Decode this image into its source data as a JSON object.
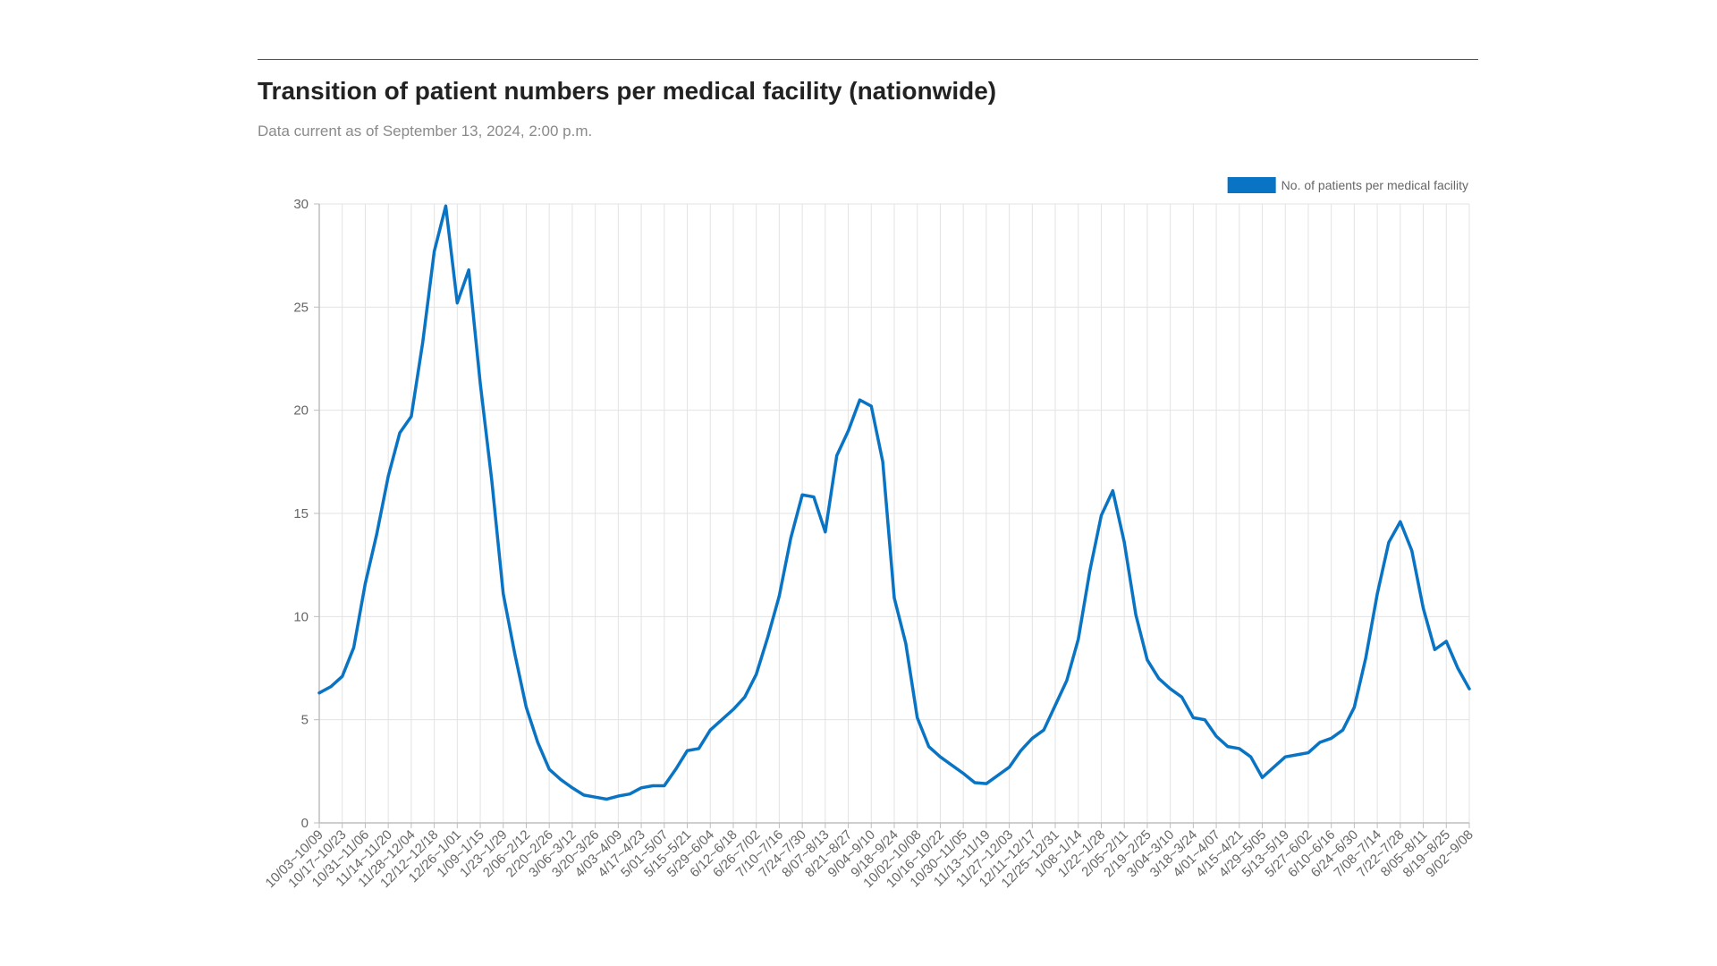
{
  "header": {
    "title": "Transition of patient numbers per medical facility (nationwide)",
    "subtitle": "Data current as of September 13, 2024, 2:00 p.m."
  },
  "colors": {
    "series": "#0a74c4",
    "grid": "#e3e3e3",
    "axis": "#bdbdbd"
  },
  "chart_data": {
    "type": "line",
    "ylim": [
      0,
      30
    ],
    "yticks": [
      0,
      5,
      10,
      15,
      20,
      25,
      30
    ],
    "grid": true,
    "legend_position": "top-right",
    "x_tick_labels": [
      "10/03~10/09",
      "10/17~10/23",
      "10/31~11/06",
      "11/14~11/20",
      "11/28~12/04",
      "12/12~12/18",
      "12/26~1/01",
      "1/09~1/15",
      "1/23~1/29",
      "2/06~2/12",
      "2/20~2/26",
      "3/06~3/12",
      "3/20~3/26",
      "4/03~4/09",
      "4/17~4/23",
      "5/01~5/07",
      "5/15~5/21",
      "5/29~6/04",
      "6/12~6/18",
      "6/26~7/02",
      "7/10~7/16",
      "7/24~7/30",
      "8/07~8/13",
      "8/21~8/27",
      "9/04~9/10",
      "9/18~9/24",
      "10/02~10/08",
      "10/16~10/22",
      "10/30~11/05",
      "11/13~11/19",
      "11/27~12/03",
      "12/11~12/17",
      "12/25~12/31",
      "1/08~1/14",
      "1/22~1/28",
      "2/05~2/11",
      "2/19~2/25",
      "3/04~3/10",
      "3/18~3/24",
      "4/01~4/07",
      "4/15~4/21",
      "4/29~5/05",
      "5/13~5/19",
      "5/27~6/02",
      "6/10~6/16",
      "6/24~6/30",
      "7/08~7/14",
      "7/22~7/28",
      "8/05~8/11",
      "8/19~8/25",
      "9/02~9/08"
    ],
    "series": [
      {
        "name": "No. of patients per medical facility",
        "values": [
          6.3,
          6.6,
          7.1,
          8.5,
          11.6,
          14.0,
          16.8,
          18.9,
          19.7,
          23.3,
          27.7,
          29.9,
          25.2,
          26.8,
          21.3,
          16.6,
          11.1,
          8.2,
          5.6,
          3.9,
          2.6,
          2.1,
          1.7,
          1.35,
          1.25,
          1.15,
          1.3,
          1.4,
          1.7,
          1.8,
          1.8,
          2.6,
          3.5,
          3.6,
          4.5,
          5.0,
          5.5,
          6.1,
          7.2,
          9.0,
          11.0,
          13.8,
          15.9,
          15.8,
          14.1,
          17.8,
          19.0,
          20.5,
          20.2,
          17.5,
          10.9,
          8.7,
          5.1,
          3.7,
          3.2,
          2.8,
          2.4,
          1.95,
          1.9,
          2.3,
          2.7,
          3.5,
          4.1,
          4.5,
          5.7,
          6.9,
          8.9,
          12.2,
          14.9,
          16.1,
          13.6,
          10.1,
          7.9,
          7.0,
          6.5,
          6.1,
          5.1,
          5.0,
          4.2,
          3.7,
          3.6,
          3.2,
          2.2,
          2.7,
          3.2,
          3.3,
          3.4,
          3.9,
          4.1,
          4.5,
          5.6,
          8.0,
          11.1,
          13.6,
          14.6,
          13.2,
          10.4,
          8.4,
          8.8,
          7.5,
          6.5
        ]
      }
    ]
  }
}
